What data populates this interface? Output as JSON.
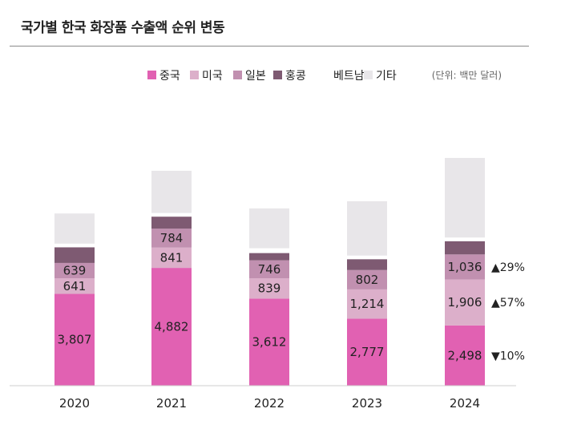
{
  "title": "국가별 한국 화장품 수출액 순위 변동",
  "colors": {
    "중국": "#e161b2",
    "미국": "#dcafca",
    "일본": "#c190b0",
    "홍콩": "#7e5a72",
    "베트남": "#ffffff",
    "기타": "#e8e6e9"
  },
  "chart_data": {
    "type": "bar",
    "stacked": true,
    "title": "국가별 한국 화장품 수출액 순위 변동",
    "unit": "(단위: 백만 달러)",
    "categories": [
      "2020",
      "2021",
      "2022",
      "2023",
      "2024"
    ],
    "legend": [
      "중국",
      "미국",
      "일본",
      "홍콩",
      "베트남",
      "기타"
    ],
    "legend_position": "top",
    "series": [
      {
        "name": "중국",
        "values": [
          3807,
          4882,
          3612,
          2777,
          2498
        ],
        "labels": [
          "3,807",
          "4,882",
          "3,612",
          "2,777",
          "2,498"
        ]
      },
      {
        "name": "미국",
        "values": [
          641,
          841,
          839,
          1214,
          1906
        ],
        "labels": [
          "641",
          "841",
          "839",
          "1,214",
          "1,906"
        ]
      },
      {
        "name": "일본",
        "values": [
          639,
          784,
          746,
          802,
          1036
        ],
        "labels": [
          "639",
          "784",
          "746",
          "802",
          "1,036"
        ]
      },
      {
        "name": "홍콩",
        "values": [
          650,
          500,
          300,
          450,
          550
        ],
        "labels": [
          "",
          "",
          "",
          "",
          ""
        ]
      },
      {
        "name": "베트남",
        "values": [
          150,
          150,
          200,
          150,
          150
        ],
        "labels": [
          "",
          "",
          "",
          "",
          ""
        ]
      },
      {
        "name": "기타",
        "values": [
          1250,
          1750,
          1650,
          2250,
          3300
        ],
        "labels": [
          "",
          "",
          "",
          "",
          ""
        ]
      }
    ],
    "ylim": [
      0,
      10800
    ],
    "grid": false,
    "annotations": [
      {
        "category": "2024",
        "series": "일본",
        "marker": "▲",
        "text": "29%"
      },
      {
        "category": "2024",
        "series": "미국",
        "marker": "▲",
        "text": "57%"
      },
      {
        "category": "2024",
        "series": "중국",
        "marker": "▼",
        "text": "10%"
      }
    ]
  }
}
